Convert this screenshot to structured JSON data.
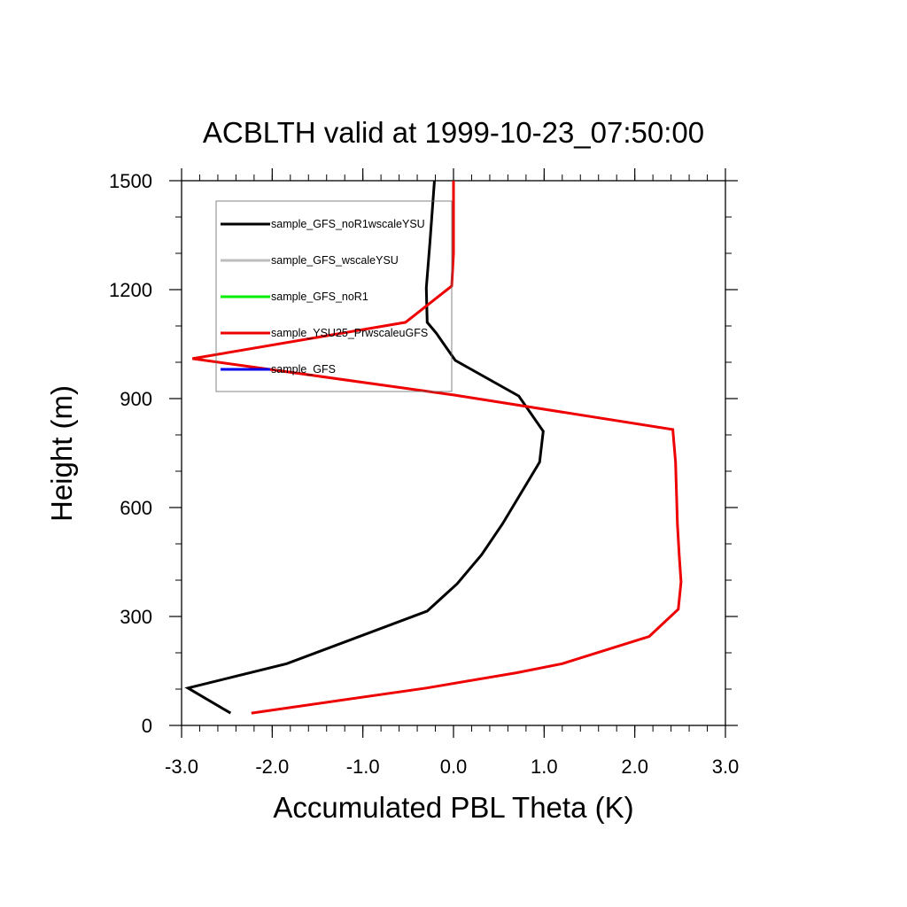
{
  "chart_data": {
    "type": "line",
    "title": "ACBLTH valid at 1999-10-23_07:50:00",
    "xlabel": "Accumulated PBL Theta (K)",
    "ylabel": "Height (m)",
    "xlim": [
      -3.0,
      3.0
    ],
    "ylim": [
      0,
      1500
    ],
    "x_ticks": [
      -3.0,
      -2.0,
      -1.0,
      0.0,
      1.0,
      2.0,
      3.0
    ],
    "x_tick_labels": [
      "-3.0",
      "-2.0",
      "-1.0",
      "0.0",
      "1.0",
      "2.0",
      "3.0"
    ],
    "y_ticks": [
      0,
      300,
      600,
      900,
      1200,
      1500
    ],
    "y_tick_labels": [
      "0",
      "300",
      "600",
      "900",
      "1200",
      "1500"
    ],
    "grid": false,
    "legend_position": "top-left",
    "series": [
      {
        "name": "sample_GFS_noR1wscaleYSU",
        "color": "#000000",
        "x": [
          -2.46,
          -2.93,
          -1.84,
          -0.29,
          0.04,
          0.31,
          0.54,
          0.95,
          0.99,
          0.72,
          0.02,
          -0.19,
          -0.29,
          -0.3,
          -0.26,
          -0.21
        ],
        "y": [
          34,
          103,
          170,
          315,
          390,
          470,
          555,
          725,
          810,
          907,
          1005,
          1080,
          1110,
          1205,
          1330,
          1500
        ]
      },
      {
        "name": "sample_GFS_wscaleYSU",
        "color": "#bdbdbd",
        "x": [],
        "y": []
      },
      {
        "name": "sample_GFS_noR1",
        "color": "#00ee00",
        "x": [],
        "y": []
      },
      {
        "name": "sample_YSU25_PrwscaleuGFS",
        "color": "#ee0000",
        "x": [
          -2.23,
          -0.3,
          0.7,
          1.2,
          2.16,
          2.48,
          2.51,
          2.49,
          2.47,
          2.45,
          2.42,
          0.0,
          -2.88,
          -0.53,
          -0.02,
          0.0,
          0.0,
          0.0
        ],
        "y": [
          34,
          103,
          145,
          170,
          245,
          320,
          395,
          470,
          555,
          725,
          815,
          910,
          1010,
          1110,
          1210,
          1300,
          1400,
          1500
        ]
      },
      {
        "name": "sample_GFS",
        "color": "#0000ee",
        "x": [],
        "y": []
      }
    ]
  }
}
